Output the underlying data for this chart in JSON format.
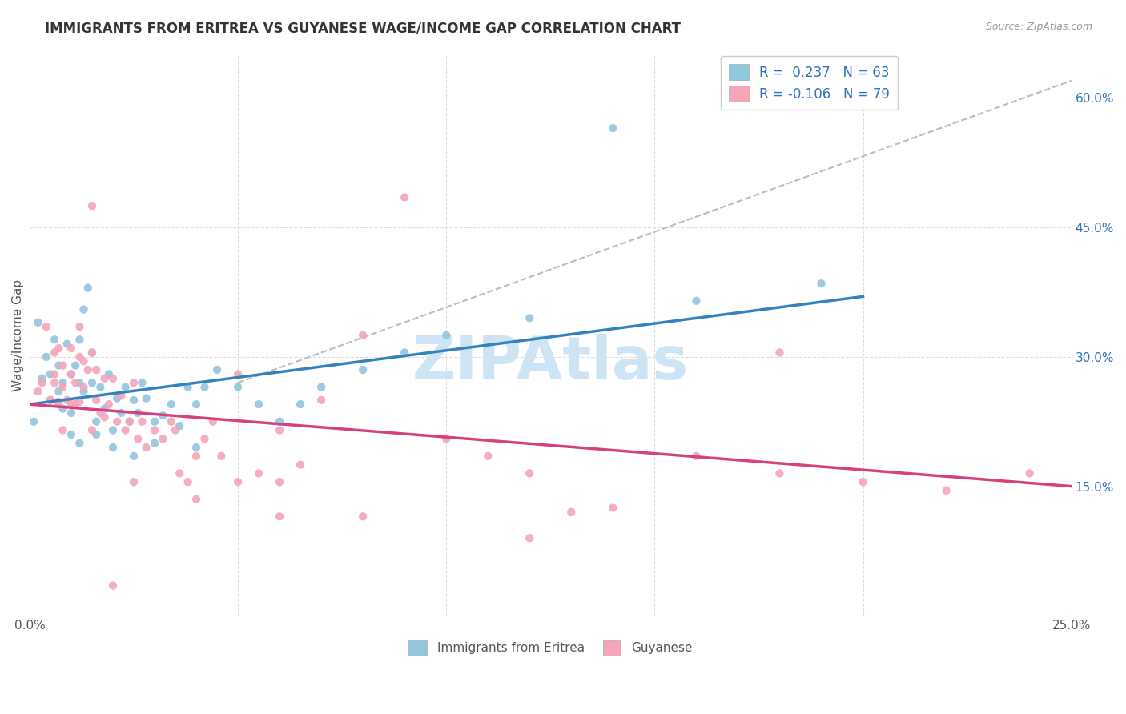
{
  "title": "IMMIGRANTS FROM ERITREA VS GUYANESE WAGE/INCOME GAP CORRELATION CHART",
  "source": "Source: ZipAtlas.com",
  "ylabel": "Wage/Income Gap",
  "xlim": [
    0.0,
    0.25
  ],
  "ylim": [
    0.0,
    0.65
  ],
  "x_tick_positions": [
    0.0,
    0.05,
    0.1,
    0.15,
    0.2,
    0.25
  ],
  "x_tick_labels": [
    "0.0%",
    "",
    "",
    "",
    "",
    "25.0%"
  ],
  "y_tick_positions": [
    0.15,
    0.3,
    0.45,
    0.6
  ],
  "y_tick_labels": [
    "15.0%",
    "30.0%",
    "45.0%",
    "60.0%"
  ],
  "R1": 0.237,
  "N1": 63,
  "R2": -0.106,
  "N2": 79,
  "color_blue": "#92c5de",
  "color_pink": "#f4a5b8",
  "color_blue_line": "#3182bd",
  "color_pink_line": "#d6407e",
  "color_gray_line": "#bbbbbb",
  "watermark": "ZIPAtlas",
  "watermark_color": "#cde4f5",
  "grid_color": "#dddddd",
  "legend1_label1": "R =  0.237   N = 63",
  "legend1_label2": "R = -0.106   N = 79",
  "legend2_label1": "Immigrants from Eritrea",
  "legend2_label2": "Guyanese",
  "blue_x": [
    0.001,
    0.002,
    0.003,
    0.004,
    0.005,
    0.005,
    0.006,
    0.007,
    0.007,
    0.008,
    0.008,
    0.009,
    0.01,
    0.01,
    0.011,
    0.011,
    0.012,
    0.012,
    0.013,
    0.013,
    0.014,
    0.015,
    0.015,
    0.016,
    0.017,
    0.018,
    0.019,
    0.02,
    0.021,
    0.022,
    0.023,
    0.024,
    0.025,
    0.026,
    0.027,
    0.028,
    0.03,
    0.032,
    0.034,
    0.036,
    0.038,
    0.04,
    0.042,
    0.045,
    0.05,
    0.055,
    0.06,
    0.065,
    0.07,
    0.08,
    0.09,
    0.1,
    0.12,
    0.14,
    0.16,
    0.19,
    0.01,
    0.012,
    0.016,
    0.02,
    0.025,
    0.03,
    0.04
  ],
  "blue_y": [
    0.225,
    0.34,
    0.275,
    0.3,
    0.25,
    0.28,
    0.32,
    0.26,
    0.29,
    0.24,
    0.27,
    0.315,
    0.28,
    0.235,
    0.29,
    0.245,
    0.32,
    0.27,
    0.355,
    0.26,
    0.38,
    0.27,
    0.305,
    0.225,
    0.265,
    0.24,
    0.28,
    0.215,
    0.252,
    0.235,
    0.265,
    0.225,
    0.25,
    0.235,
    0.27,
    0.252,
    0.225,
    0.232,
    0.245,
    0.22,
    0.265,
    0.245,
    0.265,
    0.285,
    0.265,
    0.245,
    0.225,
    0.245,
    0.265,
    0.285,
    0.305,
    0.325,
    0.345,
    0.565,
    0.365,
    0.385,
    0.21,
    0.2,
    0.21,
    0.195,
    0.185,
    0.2,
    0.195
  ],
  "pink_x": [
    0.002,
    0.003,
    0.004,
    0.005,
    0.006,
    0.006,
    0.007,
    0.007,
    0.008,
    0.008,
    0.009,
    0.01,
    0.01,
    0.011,
    0.011,
    0.012,
    0.012,
    0.013,
    0.013,
    0.014,
    0.015,
    0.015,
    0.016,
    0.016,
    0.017,
    0.018,
    0.019,
    0.02,
    0.021,
    0.022,
    0.023,
    0.024,
    0.025,
    0.026,
    0.027,
    0.028,
    0.03,
    0.032,
    0.034,
    0.036,
    0.038,
    0.04,
    0.042,
    0.044,
    0.046,
    0.05,
    0.055,
    0.06,
    0.065,
    0.07,
    0.08,
    0.09,
    0.1,
    0.11,
    0.12,
    0.14,
    0.16,
    0.18,
    0.2,
    0.22,
    0.24,
    0.18,
    0.12,
    0.08,
    0.06,
    0.04,
    0.02,
    0.05,
    0.015,
    0.01,
    0.008,
    0.007,
    0.006,
    0.012,
    0.018,
    0.025,
    0.035,
    0.06,
    0.13
  ],
  "pink_y": [
    0.26,
    0.27,
    0.335,
    0.25,
    0.28,
    0.305,
    0.31,
    0.245,
    0.265,
    0.29,
    0.25,
    0.28,
    0.31,
    0.245,
    0.27,
    0.3,
    0.335,
    0.265,
    0.295,
    0.285,
    0.475,
    0.305,
    0.285,
    0.25,
    0.235,
    0.275,
    0.245,
    0.275,
    0.225,
    0.255,
    0.215,
    0.225,
    0.155,
    0.205,
    0.225,
    0.195,
    0.215,
    0.205,
    0.225,
    0.165,
    0.155,
    0.185,
    0.205,
    0.225,
    0.185,
    0.155,
    0.165,
    0.155,
    0.175,
    0.25,
    0.325,
    0.485,
    0.205,
    0.185,
    0.165,
    0.125,
    0.185,
    0.165,
    0.155,
    0.145,
    0.165,
    0.305,
    0.09,
    0.115,
    0.115,
    0.135,
    0.035,
    0.28,
    0.215,
    0.245,
    0.215,
    0.248,
    0.27,
    0.248,
    0.23,
    0.27,
    0.215,
    0.215,
    0.12
  ],
  "blue_trend_x": [
    0.0,
    0.2
  ],
  "blue_trend_y": [
    0.245,
    0.37
  ],
  "pink_trend_x": [
    0.0,
    0.25
  ],
  "pink_trend_y": [
    0.245,
    0.15
  ],
  "gray_trend_x": [
    0.05,
    0.25
  ],
  "gray_trend_y": [
    0.27,
    0.62
  ]
}
